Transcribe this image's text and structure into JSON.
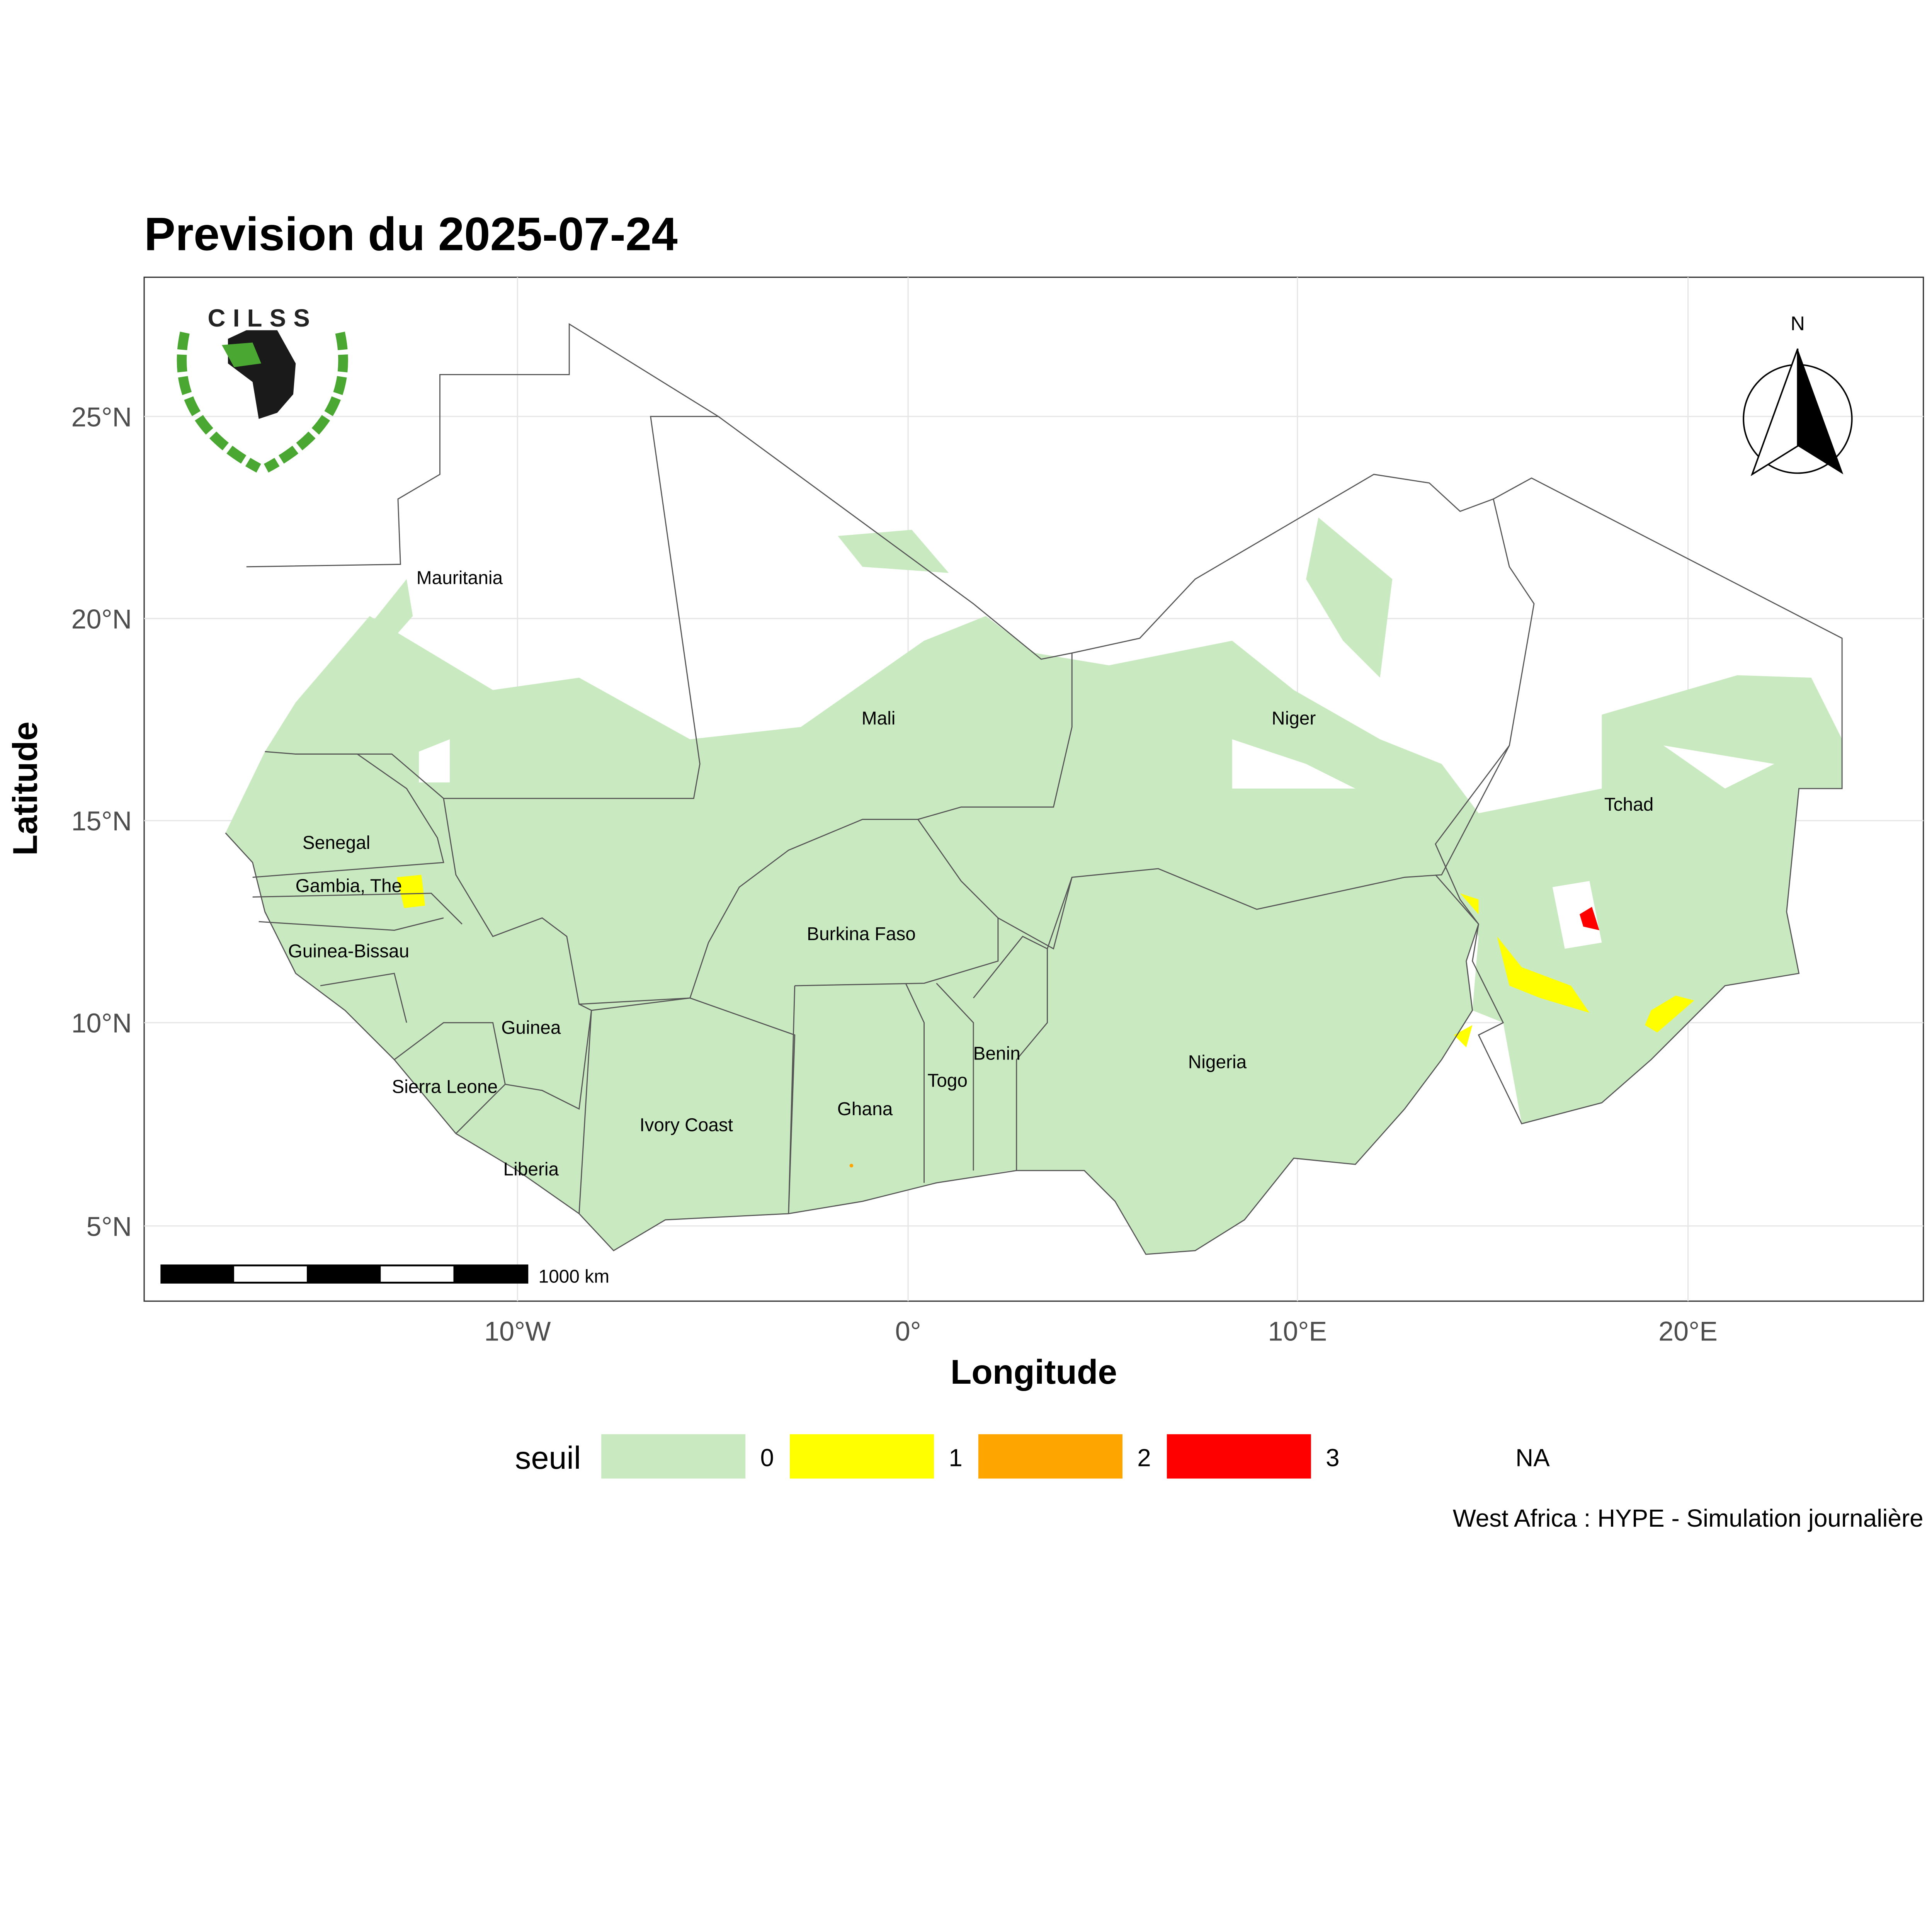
{
  "title": "Prevision du 2025-07-24",
  "caption": "West Africa : HYPE - Simulation journalière",
  "chart_data": {
    "type": "map",
    "title": "Prevision du 2025-07-24",
    "xlabel": "Longitude",
    "ylabel": "Latitude",
    "x_ticks": [
      "10°W",
      "0°",
      "10°E",
      "20°E"
    ],
    "y_ticks": [
      "25°N",
      "20°N",
      "15°N",
      "10°N",
      "5°N"
    ],
    "grid": true,
    "legend": {
      "title": "seuil",
      "position": "bottom",
      "entries": [
        {
          "label": "0",
          "color": "#c9e9c0"
        },
        {
          "label": "1",
          "color": "#ffff00"
        },
        {
          "label": "2",
          "color": "#ffa500"
        },
        {
          "label": "3",
          "color": "#ff0000"
        },
        {
          "label": "NA",
          "color": "#ffffff"
        }
      ]
    },
    "countries": [
      "Mauritania",
      "Mali",
      "Niger",
      "Tchad",
      "Senegal",
      "Gambia, The",
      "Guinea-Bissau",
      "Guinea",
      "Sierra Leone",
      "Liberia",
      "Ivory Coast",
      "Burkina Faso",
      "Ghana",
      "Togo",
      "Benin",
      "Nigeria"
    ],
    "scale_bar": "1000 km",
    "north_arrow": "N",
    "logo": "CILSS"
  }
}
